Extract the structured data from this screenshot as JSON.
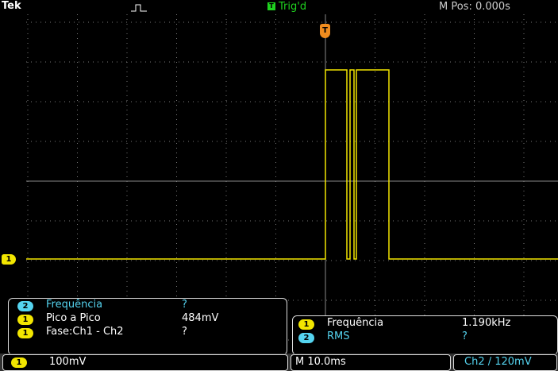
{
  "header": {
    "brand": "Tek",
    "trigger_icon": "T",
    "status": "Trig'd",
    "position": "M Pos: 0.000s"
  },
  "trigger_marker": "T",
  "channel_marker": "1",
  "measurements_left": [
    {
      "channel": "2",
      "name": "Frequência",
      "value": "?"
    },
    {
      "channel": "1",
      "name": "Pico a Pico",
      "value": "484mV"
    },
    {
      "channel": "1",
      "name": "Fase:Ch1 - Ch2",
      "value": "?"
    }
  ],
  "measurements_right": [
    {
      "channel": "1",
      "name": "Frequência",
      "value": "1.190kHz"
    },
    {
      "channel": "2",
      "name": "RMS",
      "value": "?"
    }
  ],
  "footer": {
    "channel": "1",
    "scale": "100mV",
    "timebase": "M 10.0ms",
    "trigger": "Ch2 / 120mV"
  }
}
